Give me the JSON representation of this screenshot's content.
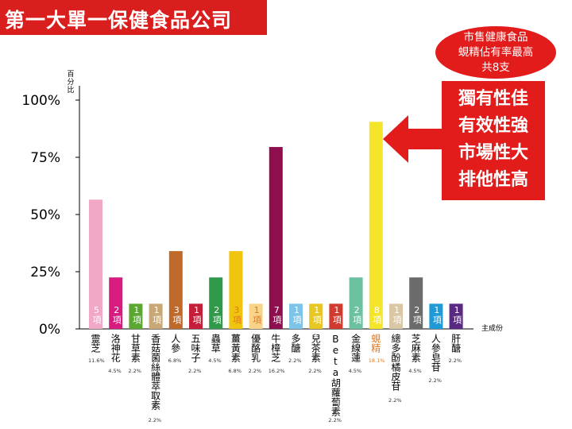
{
  "header": {
    "title": "第一大單一保健食品公司"
  },
  "callout": {
    "ellipse_lines": [
      "市售健康食品",
      "蜆精佔有率最高",
      "共8支"
    ],
    "claims": [
      "獨有性佳",
      "有效性強",
      "市場性大",
      "排他性高"
    ]
  },
  "chart_data": {
    "type": "bar",
    "ylabel": "百分比",
    "xlabel": "主成份",
    "ylim": [
      0,
      100
    ],
    "yticks": [
      "0%",
      "25%",
      "50%",
      "75%",
      "100%"
    ],
    "grid": false,
    "categories": [
      "靈芝",
      "洛神花",
      "甘草素",
      "香菇菌絲體萃取素",
      "人參",
      "五味子",
      "蟲草",
      "薑黃素",
      "優酪乳",
      "牛樟芝",
      "多醣",
      "兒茶素",
      "Beta胡蘿蔔素",
      "金線蓮",
      "蜆精",
      "總多酚橘皮苷",
      "芝麻素",
      "人參皂苷",
      "肝醣"
    ],
    "values": [
      56.5,
      22.5,
      11,
      11,
      34,
      11,
      22.5,
      34,
      11,
      79.5,
      11,
      11,
      11,
      22.5,
      90.5,
      11,
      22.5,
      11,
      11
    ],
    "counts": [
      "5項",
      "2項",
      "1項",
      "1項",
      "3項",
      "1項",
      "2項",
      "3項",
      "1項",
      "7項",
      "1項",
      "1項",
      "1項",
      "2項",
      "8項",
      "1項",
      "2項",
      "1項",
      "1項"
    ],
    "percent_labels": [
      "11.6%",
      "4.5%",
      "2.2%",
      "2.2%",
      "6.8%",
      "2.2%",
      "4.5%",
      "6.8%",
      "2.2%",
      "16.2%",
      "2.2%",
      "2.2%",
      "2.2%",
      "4.5%",
      "18.1%",
      "2.2%",
      "4.5%",
      "2.2%",
      "2.2%"
    ],
    "colors": [
      "#f0a8c6",
      "#d81b7f",
      "#5aa832",
      "#c9a878",
      "#bf6a2a",
      "#c41e3a",
      "#2e9a4a",
      "#f1c40f",
      "#f7d48a",
      "#8e0e4e",
      "#7ec3e8",
      "#e8c820",
      "#d13a2e",
      "#6cc1a0",
      "#f5e52a",
      "#d9c7a6",
      "#6b6b6b",
      "#1f9ad6",
      "#5a2a82"
    ],
    "count_colors": [
      "#ffffff",
      "#ffffff",
      "#ffffff",
      "#ffffff",
      "#ffffff",
      "#ffffff",
      "#ffffff",
      "#e07820",
      "#e07820",
      "#ffffff",
      "#ffffff",
      "#ffffff",
      "#ffffff",
      "#ffffff",
      "#ffffff",
      "#ffffff",
      "#ffffff",
      "#ffffff",
      "#ffffff"
    ],
    "highlight_index": 14,
    "highlight_color": "#e07820"
  }
}
